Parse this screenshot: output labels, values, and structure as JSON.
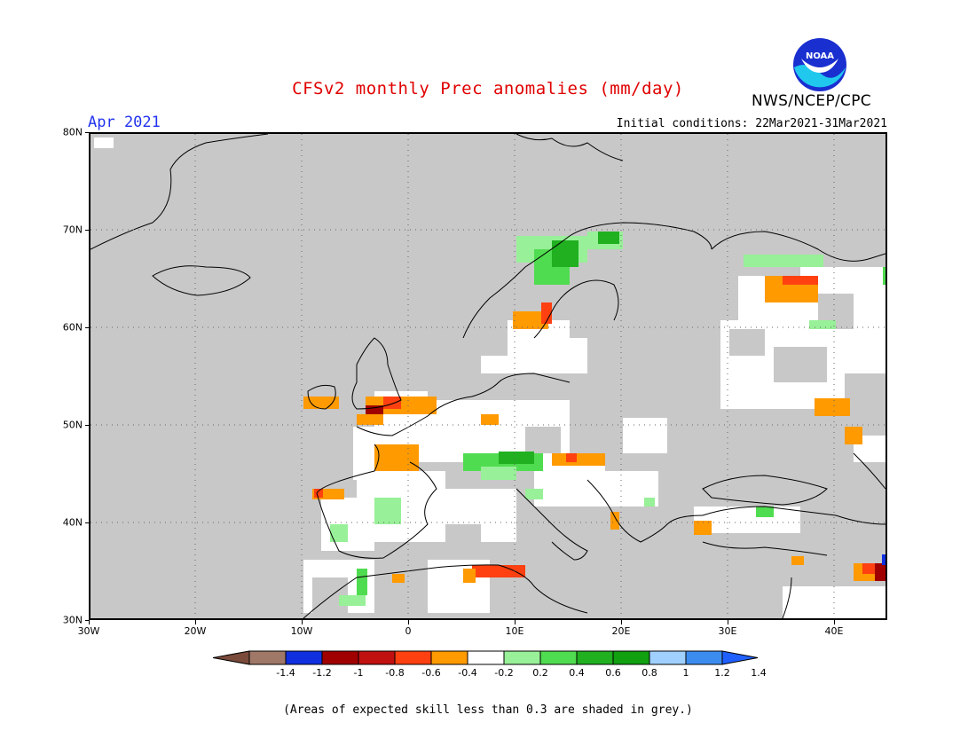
{
  "header": {
    "title": "CFSv2 monthly Prec anomalies (mm/day)",
    "period": "Apr 2021",
    "initial_conditions": "Initial conditions: 22Mar2021-31Mar2021",
    "agency": "NWS/NCEP/CPC",
    "logo_text": "NOAA"
  },
  "map": {
    "region": "Europe",
    "lon_range": [
      -30,
      45
    ],
    "lat_range": [
      30,
      80
    ],
    "colors": {
      "no_skill_grey": "#c8c8c8",
      "near_zero_white": "#ffffff",
      "coastline": "#000000"
    },
    "y_axis": {
      "labels": [
        "80N",
        "70N",
        "60N",
        "50N",
        "40N",
        "30N"
      ],
      "values": [
        80,
        70,
        60,
        50,
        40,
        30
      ]
    },
    "x_axis": {
      "labels": [
        "30W",
        "20W",
        "10W",
        "0",
        "10E",
        "20E",
        "30E",
        "40E"
      ],
      "values": [
        -30,
        -20,
        -10,
        0,
        10,
        20,
        30,
        40
      ]
    }
  },
  "colorbar": {
    "labels": [
      "-1.4",
      "-1.2",
      "-1",
      "-0.8",
      "-0.6",
      "-0.4",
      "-0.2",
      "0.2",
      "0.4",
      "0.6",
      "0.8",
      "1",
      "1.2",
      "1.4"
    ],
    "colors": [
      "#7a4a3a",
      "#a07868",
      "#1030e0",
      "#a00000",
      "#c01010",
      "#ff4010",
      "#ff9a00",
      "#ffffff",
      "#98f098",
      "#50dc50",
      "#20b020",
      "#10a010",
      "#a0d0ff",
      "#3c8cf0",
      "#2060ff"
    ]
  },
  "footnote": "(Areas of expected skill less than 0.3 are shaded in grey.)"
}
